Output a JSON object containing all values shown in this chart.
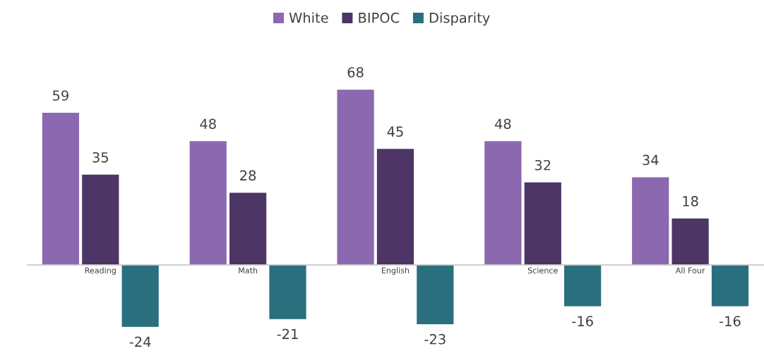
{
  "chart_data": {
    "type": "bar",
    "categories": [
      "Reading",
      "Math",
      "English",
      "Science",
      "All Four"
    ],
    "series": [
      {
        "name": "White",
        "color": "#8c68b0",
        "values": [
          59,
          48,
          68,
          48,
          34
        ]
      },
      {
        "name": "BIPOC",
        "color": "#4d3566",
        "values": [
          35,
          28,
          45,
          32,
          18
        ]
      },
      {
        "name": "Disparity",
        "color": "#2a6f7e",
        "values": [
          -24,
          -21,
          -23,
          -16,
          -16
        ]
      }
    ],
    "data_labels": true,
    "legend": "top"
  }
}
